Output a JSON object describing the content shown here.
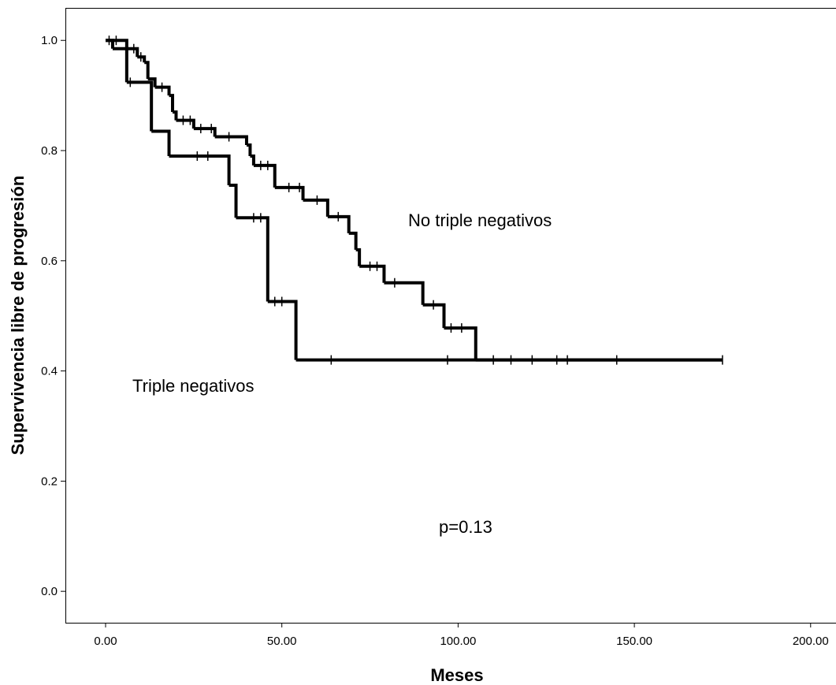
{
  "chart_data": {
    "type": "step",
    "x_label": "Meses",
    "y_label": "Supervivencia libre de progresión",
    "annotation": "p=0.13",
    "xlim": [
      -11.4,
      207.2
    ],
    "ylim": [
      -0.057,
      1.059
    ],
    "xticks": [
      {
        "value": 0,
        "label": "0.00"
      },
      {
        "value": 50,
        "label": "50.00"
      },
      {
        "value": 100,
        "label": "100.00"
      },
      {
        "value": 150,
        "label": "150.00"
      },
      {
        "value": 200,
        "label": "200.00"
      }
    ],
    "yticks": [
      {
        "value": 0,
        "label": "0.0"
      },
      0.2,
      0.4,
      0.6,
      0.8,
      {
        "value": 1,
        "label": "1.0"
      }
    ],
    "series": [
      {
        "name": "No triple negativos",
        "color": "#000000",
        "x": [
          0,
          6,
          9,
          11,
          12,
          14,
          18,
          19,
          20,
          25,
          31,
          40,
          41,
          42,
          48,
          56,
          63,
          69,
          71,
          72,
          79,
          90,
          96,
          105,
          175
        ],
        "values": [
          1,
          0.985,
          0.97,
          0.96,
          0.93,
          0.915,
          0.9,
          0.87,
          0.855,
          0.84,
          0.825,
          0.81,
          0.79,
          0.773,
          0.733,
          0.71,
          0.68,
          0.65,
          0.62,
          0.59,
          0.56,
          0.52,
          0.478,
          0.42,
          0.42
        ],
        "censored_x": [
          3,
          8,
          10,
          16,
          22,
          24,
          27,
          30,
          35,
          44,
          46,
          52,
          55,
          60,
          66,
          75,
          77,
          82,
          93,
          98,
          101,
          110,
          115,
          121,
          128,
          131,
          145,
          175
        ],
        "censored_values": [
          1,
          0.985,
          0.97,
          0.915,
          0.855,
          0.855,
          0.84,
          0.84,
          0.825,
          0.773,
          0.773,
          0.733,
          0.733,
          0.71,
          0.68,
          0.59,
          0.59,
          0.56,
          0.52,
          0.478,
          0.478,
          0.42,
          0.42,
          0.42,
          0.42,
          0.42,
          0.42,
          0.42
        ]
      },
      {
        "name": "Triple negativos",
        "color": "#000000",
        "x": [
          0,
          2,
          6,
          13,
          18,
          35,
          37,
          46,
          54,
          175
        ],
        "values": [
          1,
          0.985,
          0.924,
          0.835,
          0.79,
          0.737,
          0.678,
          0.526,
          0.42,
          0.42
        ],
        "censored_x": [
          1,
          7,
          26,
          29,
          42,
          44,
          48,
          50,
          64,
          97
        ],
        "censored_values": [
          1,
          0.924,
          0.79,
          0.79,
          0.678,
          0.678,
          0.526,
          0.526,
          0.42,
          0.42
        ]
      }
    ]
  }
}
